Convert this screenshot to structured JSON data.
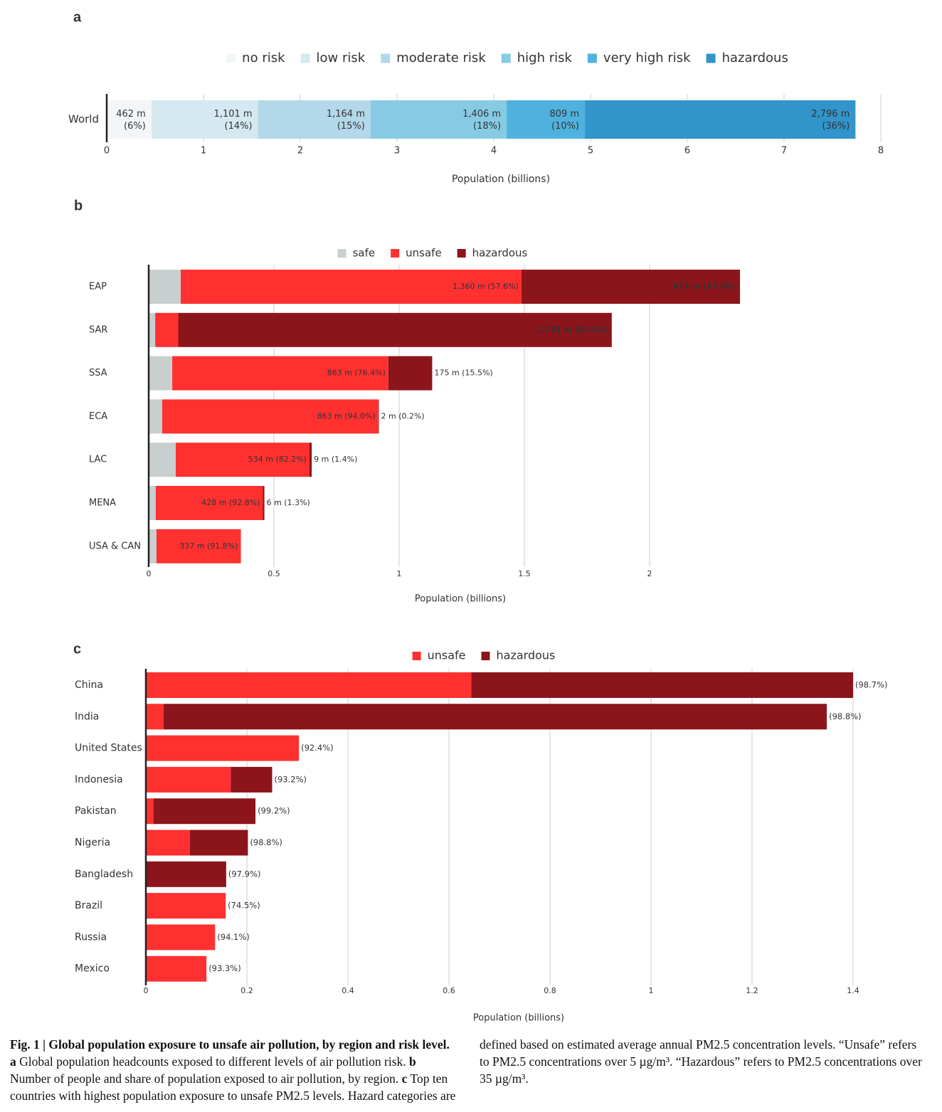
{
  "chart_data": [
    {
      "type": "bar",
      "orientation": "horizontal",
      "stacked": true,
      "panel": "a",
      "categories": [
        "World"
      ],
      "series": [
        {
          "name": "no risk",
          "color": "#f3f6f8",
          "values": [
            0.462
          ],
          "value_labels": [
            "462 m (6%)"
          ]
        },
        {
          "name": "low risk",
          "color": "#d5e9f1",
          "values": [
            1.101
          ],
          "value_labels": [
            "1,101 m (14%)"
          ]
        },
        {
          "name": "moderate risk",
          "color": "#b2d8e9",
          "values": [
            1.164
          ],
          "value_labels": [
            "1,164 m (15%)"
          ]
        },
        {
          "name": "high risk",
          "color": "#86cbe3",
          "values": [
            1.406
          ],
          "value_labels": [
            "1,406 m (18%)"
          ]
        },
        {
          "name": "very high risk",
          "color": "#4fb2de",
          "values": [
            0.809
          ],
          "value_labels": [
            "809 m (10%)"
          ]
        },
        {
          "name": "hazardous",
          "color": "#3194ca",
          "values": [
            2.796
          ],
          "value_labels": [
            "2,796 m (36%)"
          ]
        }
      ],
      "xlim": [
        0,
        8
      ],
      "xticks": [
        0,
        1,
        2,
        3,
        4,
        5,
        6,
        7,
        8
      ],
      "xlabel": "Population (billions)",
      "grid": true
    },
    {
      "type": "bar",
      "orientation": "horizontal",
      "stacked": true,
      "panel": "b",
      "categories": [
        "EAP",
        "SAR",
        "SSA",
        "ECA",
        "LAC",
        "MENA",
        "USA & CAN"
      ],
      "series": [
        {
          "name": "safe",
          "color": "#c8cfce",
          "values": [
            0.128,
            0.026,
            0.094,
            0.054,
            0.108,
            0.028,
            0.031
          ]
        },
        {
          "name": "unsafe",
          "color": "#ff3030",
          "values": [
            1.36,
            0.092,
            0.863,
            0.863,
            0.534,
            0.428,
            0.337
          ],
          "value_labels": [
            "1,360 m (57.6%)",
            null,
            "863 m (76.4%)",
            "863 m (94.0%)",
            "534 m (82.2%)",
            "428 m (92.8%)",
            "337 m (91.8%)"
          ]
        },
        {
          "name": "hazardous",
          "color": "#8c151b",
          "values": [
            0.873,
            1.731,
            0.175,
            0.002,
            0.009,
            0.006,
            null
          ],
          "value_labels": [
            "873 m (37.0%)",
            "1,731 m (93.6%)",
            "175 m (15.5%)",
            "2 m (0.2%)",
            "9 m (1.4%)",
            "6 m (1.3%)",
            null
          ]
        }
      ],
      "xlim": [
        0,
        2.5
      ],
      "xticks": [
        0,
        0.5,
        1,
        1.5,
        2
      ],
      "xlabel": "Population (billions)",
      "grid": true
    },
    {
      "type": "bar",
      "orientation": "horizontal",
      "stacked": true,
      "panel": "c",
      "categories": [
        "China",
        "India",
        "United States",
        "Indonesia",
        "Pakistan",
        "Nigeria",
        "Bangladesh",
        "Brazil",
        "Russia",
        "Mexico"
      ],
      "series": [
        {
          "name": "unsafe",
          "color": "#ff3030",
          "values": [
            0.644,
            0.035,
            0.303,
            0.168,
            0.015,
            0.087,
            0,
            0.158,
            0.137,
            0.12
          ]
        },
        {
          "name": "hazardous",
          "color": "#8c151b",
          "values": [
            0.756,
            1.313,
            0,
            0.082,
            0.202,
            0.115,
            0.159,
            0,
            0,
            0
          ]
        }
      ],
      "share_labels": [
        "(98.7%)",
        "(98.8%)",
        "(92.4%)",
        "(93.2%)",
        "(99.2%)",
        "(98.8%)",
        "(97.9%)",
        "(74.5%)",
        "(94.1%)",
        "(93.3%)"
      ],
      "xlim": [
        0,
        1.45
      ],
      "xticks": [
        0,
        0.2,
        0.4,
        0.6,
        0.8,
        1,
        1.2,
        1.4
      ],
      "xlabel": "Population (billions)",
      "grid": true
    }
  ],
  "caption": [
    {
      "text": "Fig. 1 | Global population exposure to unsafe air pollution, by region and risk level.",
      "bold": true
    },
    {
      "text": "a",
      "bold": true
    },
    {
      "text": "Global population headcounts exposed to different levels of air pollution risk.",
      "bold": false
    },
    {
      "text": "b",
      "bold": true
    },
    {
      "text": "Number of people and share of population exposed to air pollution, by region.",
      "bold": false
    },
    {
      "text": "c",
      "bold": true
    },
    {
      "text": "Top ten countries with highest population exposure to unsafe PM2.5 levels. Hazard categories are defined based on estimated average annual PM2.5 concentration levels. “Unsafe” refers to PM2.5 concentrations over 5 µg/m³. “Hazardous” refers to PM2.5 concentrations over 35 µg/m³.",
      "bold": false
    }
  ]
}
